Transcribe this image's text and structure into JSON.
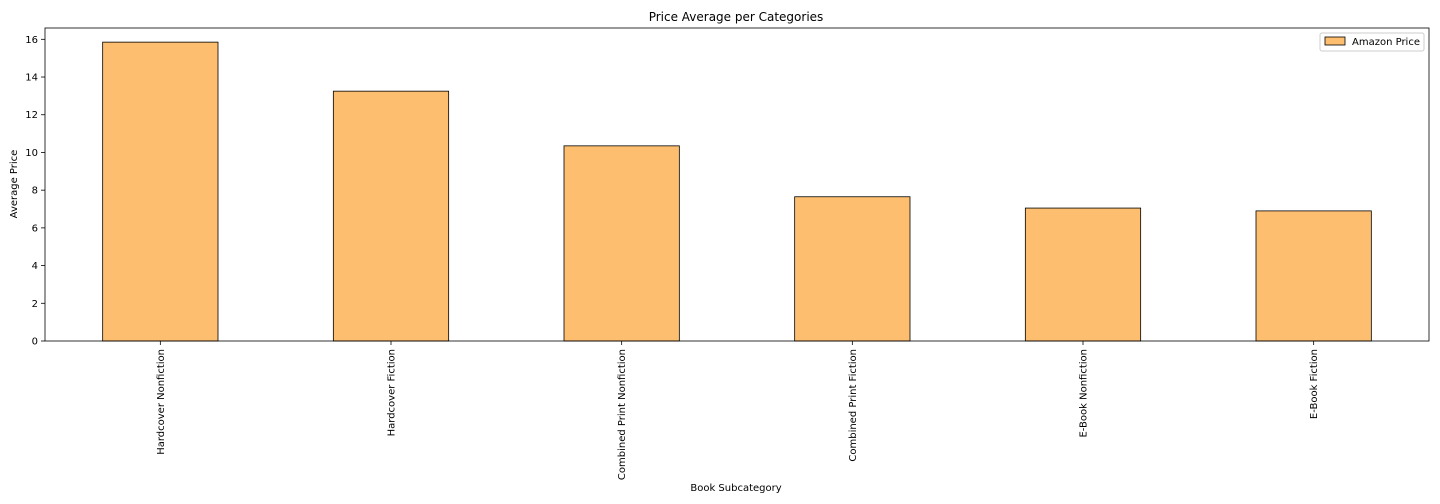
{
  "chart_data": {
    "type": "bar",
    "title": "Price Average per Categories",
    "xlabel": "Book Subcategory",
    "ylabel": "Average Price",
    "categories": [
      "Hardcover Nonfiction",
      "Hardcover Fiction",
      "Combined Print Nonfiction",
      "Combined Print Fiction",
      "E-Book Nonfiction",
      "E-Book Fiction"
    ],
    "series": [
      {
        "name": "Amazon Price",
        "values": [
          15.85,
          13.25,
          10.35,
          7.65,
          7.05,
          6.9
        ]
      }
    ],
    "ylim": [
      0,
      16.6
    ],
    "yticks": [
      0,
      2,
      4,
      6,
      8,
      10,
      12,
      14,
      16
    ],
    "grid": false,
    "legend": "top-right",
    "colors": {
      "bar_fill": "#fdbf6f",
      "bar_edge": "#000000"
    }
  }
}
